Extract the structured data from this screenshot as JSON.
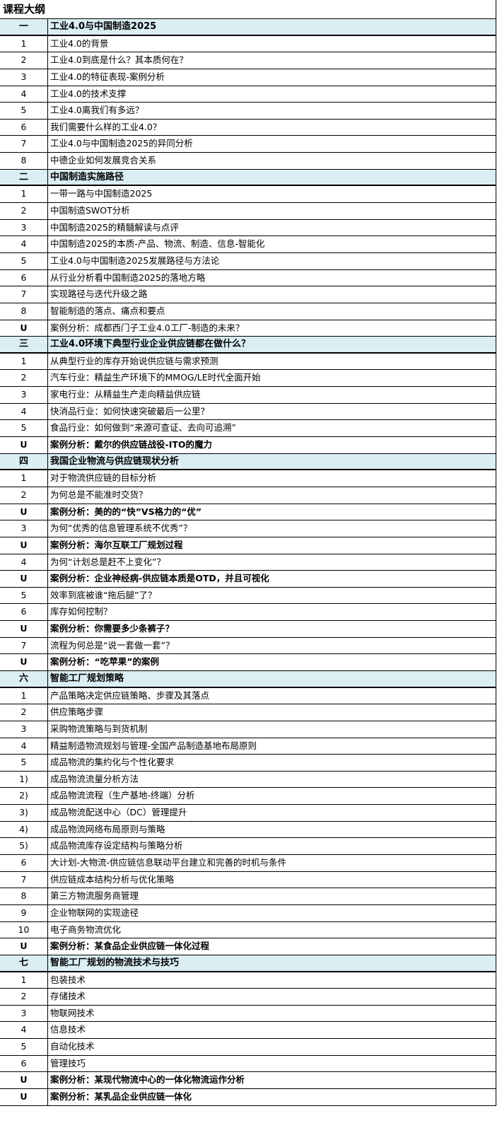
{
  "title": "课程大纲",
  "colors": {
    "section_bg": "#daeef3",
    "border": "#000000"
  },
  "rows": [
    {
      "num": "一",
      "text": "工业4.0与中国制造2025",
      "type": "section"
    },
    {
      "num": "1",
      "text": "工业4.0的背景"
    },
    {
      "num": "2",
      "text": "工业4.0到底是什么？其本质何在？"
    },
    {
      "num": "3",
      "text": "工业4.0的特征表现-案例分析"
    },
    {
      "num": "4",
      "text": "工业4.0的技术支撑"
    },
    {
      "num": "5",
      "text": "工业4.0离我们有多远？"
    },
    {
      "num": "6",
      "text": "我们需要什么样的工业4.0？"
    },
    {
      "num": "7",
      "text": "工业4.0与中国制造2025的异同分析"
    },
    {
      "num": "8",
      "text": "中德企业如何发展竞合关系"
    },
    {
      "num": "二",
      "text": "中国制造实施路径",
      "type": "section"
    },
    {
      "num": "1",
      "text": "一带一路与中国制造2025"
    },
    {
      "num": "2",
      "text": "中国制造SWOT分析"
    },
    {
      "num": "3",
      "text": "中国制造2025的精髓解读与点评"
    },
    {
      "num": "4",
      "text": "中国制造2025的本质-产品、物流、制造、信息-智能化"
    },
    {
      "num": "5",
      "text": "工业4.0与中国制造2025发展路径与方法论"
    },
    {
      "num": "6",
      "text": "从行业分析看中国制造2025的落地方略"
    },
    {
      "num": "7",
      "text": "实现路径与迭代升级之路"
    },
    {
      "num": "8",
      "text": "智能制造的落点、痛点和要点"
    },
    {
      "num": "U",
      "text": "案例分析：成都西门子工业4.0工厂-制造的未来？",
      "type": "ucase"
    },
    {
      "num": "三",
      "text": "工业4.0环境下典型行业企业供应链都在做什么？",
      "type": "section"
    },
    {
      "num": "1",
      "text": "从典型行业的库存开始说供应链与需求预测"
    },
    {
      "num": "2",
      "text": "汽车行业：精益生产环境下的MMOG/LE时代全面开始"
    },
    {
      "num": "3",
      "text": "家电行业：从精益生产走向精益供应链"
    },
    {
      "num": "4",
      "text": "快消品行业：如何快速突破最后一公里？"
    },
    {
      "num": "5",
      "text": "食品行业：如何做到“来源可查证、去向可追溯”"
    },
    {
      "num": "U",
      "text": "案例分析：戴尔的供应链战役-ITO的魔力",
      "type": "bold"
    },
    {
      "num": "四",
      "text": "我国企业物流与供应链现状分析",
      "type": "section"
    },
    {
      "num": "1",
      "text": "对于物流供应链的目标分析"
    },
    {
      "num": "2",
      "text": "为何总是不能准时交货？"
    },
    {
      "num": "U",
      "text": "案例分析：美的的“快”VS格力的“优”",
      "type": "bold"
    },
    {
      "num": "3",
      "text": "为何“优秀的信息管理系统不优秀”？"
    },
    {
      "num": "U",
      "text": "案例分析：海尔互联工厂规划过程",
      "type": "bold"
    },
    {
      "num": "4",
      "text": "为何“计划总是赶不上变化”？"
    },
    {
      "num": "U",
      "text": "案例分析：企业神经病-供应链本质是OTD，并且可视化",
      "type": "bold"
    },
    {
      "num": "5",
      "text": "效率到底被谁“拖后腿”了？"
    },
    {
      "num": "6",
      "text": "库存如何控制？"
    },
    {
      "num": "U",
      "text": "案例分析：你需要多少条裤子？",
      "type": "bold"
    },
    {
      "num": "7",
      "text": "流程为何总是“说一套做一套”？"
    },
    {
      "num": "U",
      "text": "案例分析：“吃苹果”的案例",
      "type": "bold"
    },
    {
      "num": "六",
      "text": "智能工厂规划策略",
      "type": "section"
    },
    {
      "num": "1",
      "text": "产品策略决定供应链策略、步骤及其落点"
    },
    {
      "num": "2",
      "text": "供应策略步骤"
    },
    {
      "num": "3",
      "text": "采购物流策略与到货机制"
    },
    {
      "num": "4",
      "text": "精益制造物流规划与管理-全国产品制造基地布局原则"
    },
    {
      "num": "5",
      "text": "成品物流的集约化与个性化要求"
    },
    {
      "num": "1)",
      "text": "成品物流流量分析方法"
    },
    {
      "num": "2)",
      "text": "成品物流流程（生产基地-终端）分析"
    },
    {
      "num": "3)",
      "text": "成品物流配送中心（DC）管理提升"
    },
    {
      "num": "4)",
      "text": "成品物流网络布局原则与策略"
    },
    {
      "num": "5)",
      "text": "成品物流库存设定结构与策略分析"
    },
    {
      "num": "6",
      "text": "大计划-大物流-供应链信息联动平台建立和完善的时机与条件"
    },
    {
      "num": "7",
      "text": "供应链成本结构分析与优化策略"
    },
    {
      "num": "8",
      "text": "第三方物流服务商管理"
    },
    {
      "num": "9",
      "text": "企业物联网的实现途径"
    },
    {
      "num": "10",
      "text": "电子商务物流优化"
    },
    {
      "num": "U",
      "text": "案例分析：某食品企业供应链一体化过程",
      "type": "bold"
    },
    {
      "num": "七",
      "text": "智能工厂规划的物流技术与技巧",
      "type": "section"
    },
    {
      "num": "1",
      "text": "包装技术"
    },
    {
      "num": "2",
      "text": "存储技术"
    },
    {
      "num": "3",
      "text": "物联网技术"
    },
    {
      "num": "4",
      "text": "信息技术"
    },
    {
      "num": "5",
      "text": "自动化技术"
    },
    {
      "num": "6",
      "text": "管理技巧"
    },
    {
      "num": "U",
      "text": "案例分析：某现代物流中心的一体化物流运作分析",
      "type": "bold"
    },
    {
      "num": "U",
      "text": "案例分析：某乳品企业供应链一体化",
      "type": "bold"
    }
  ]
}
